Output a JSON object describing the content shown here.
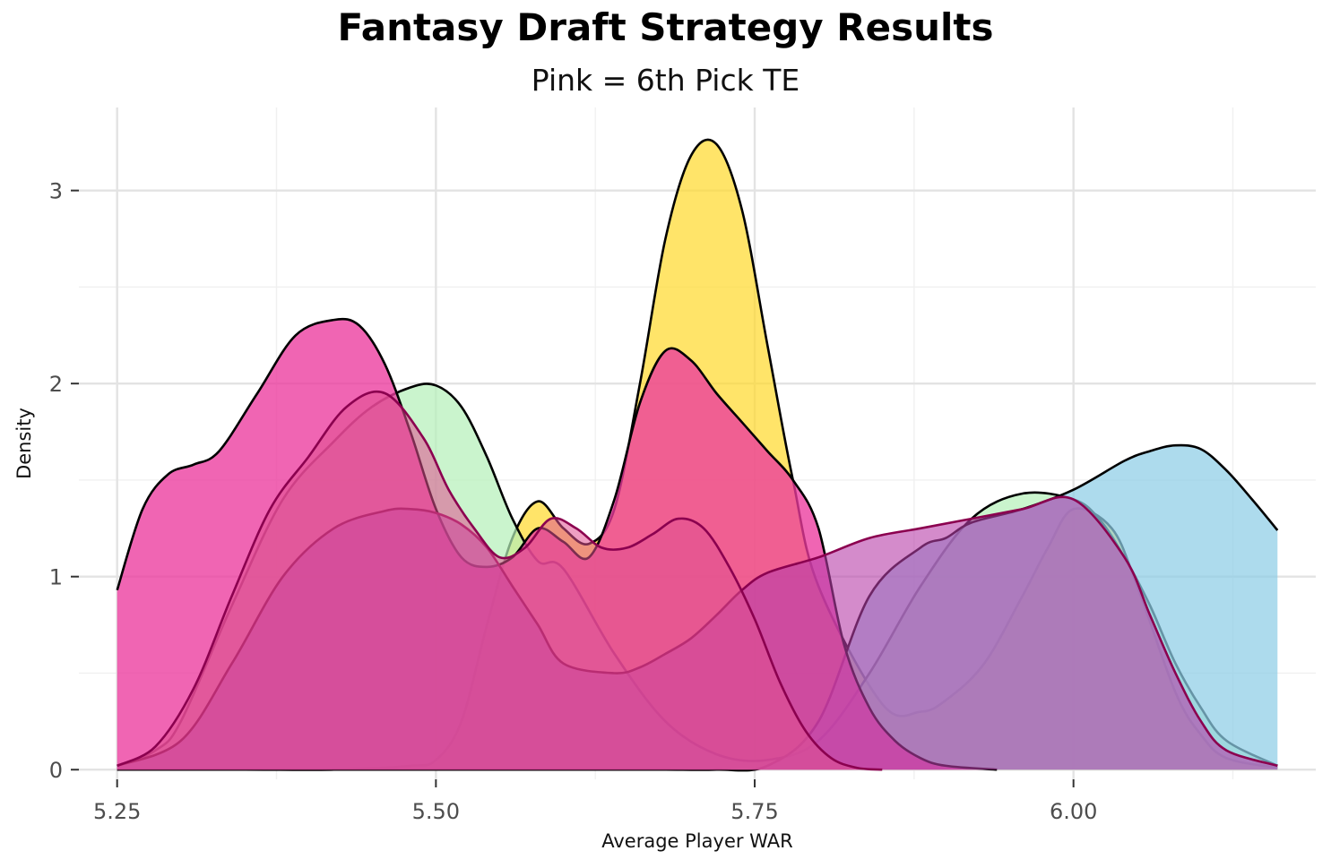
{
  "chart_data": {
    "type": "area",
    "title": "Fantasy Draft Strategy Results",
    "subtitle": "Pink = 6th Pick TE",
    "xlabel": "Average Player WAR",
    "ylabel": "Density",
    "xlim": [
      5.22,
      6.19
    ],
    "ylim": [
      -0.05,
      3.43
    ],
    "xticks": [
      "5.25",
      "5.50",
      "5.75",
      "6.00"
    ],
    "xtick_values": [
      5.25,
      5.5,
      5.75,
      6.0
    ],
    "yticks": [
      "0",
      "1",
      "2",
      "3"
    ],
    "ytick_values": [
      0,
      1,
      2,
      3
    ],
    "grid": true,
    "series": [
      {
        "color": "#ffd92f",
        "opacity": 0.72,
        "outline": "#000000",
        "x": [
          5.25,
          5.35,
          5.42,
          5.48,
          5.5,
          5.52,
          5.54,
          5.56,
          5.58,
          5.6,
          5.62,
          5.64,
          5.66,
          5.68,
          5.7,
          5.72,
          5.74,
          5.76,
          5.78,
          5.8,
          5.85,
          5.88,
          5.9,
          5.93,
          5.96,
          5.98,
          6.0,
          6.03,
          6.05,
          6.08,
          6.1,
          6.12,
          6.16
        ],
        "y": [
          0,
          0,
          0,
          0.02,
          0.05,
          0.25,
          0.75,
          1.2,
          1.39,
          1.25,
          1.17,
          1.35,
          2.0,
          2.75,
          3.18,
          3.24,
          2.9,
          2.2,
          1.5,
          0.95,
          0.34,
          0.3,
          0.36,
          0.55,
          0.9,
          1.15,
          1.35,
          1.25,
          0.95,
          0.4,
          0.18,
          0.06,
          0.01
        ]
      },
      {
        "color": "#b3f0b8",
        "opacity": 0.7,
        "outline": "#000000",
        "x": [
          5.25,
          5.28,
          5.3,
          5.34,
          5.38,
          5.42,
          5.45,
          5.48,
          5.5,
          5.52,
          5.54,
          5.56,
          5.58,
          5.6,
          5.64,
          5.68,
          5.72,
          5.76,
          5.8,
          5.84,
          5.88,
          5.92,
          5.96,
          6.0,
          6.02,
          6.04,
          6.06,
          6.08,
          6.1,
          6.12,
          6.16
        ],
        "y": [
          0.02,
          0.1,
          0.25,
          0.85,
          1.4,
          1.7,
          1.88,
          1.98,
          1.99,
          1.88,
          1.62,
          1.3,
          1.08,
          1.04,
          0.6,
          0.25,
          0.08,
          0.05,
          0.15,
          0.5,
          0.95,
          1.3,
          1.43,
          1.4,
          1.3,
          1.1,
          0.85,
          0.55,
          0.32,
          0.15,
          0.02
        ]
      },
      {
        "color": "#8ecde6",
        "opacity": 0.72,
        "outline": "#000000",
        "x": [
          5.25,
          5.55,
          5.6,
          5.64,
          5.68,
          5.72,
          5.76,
          5.8,
          5.84,
          5.88,
          5.9,
          5.92,
          5.96,
          6.0,
          6.04,
          6.06,
          6.08,
          6.1,
          6.12,
          6.14,
          6.16
        ],
        "y": [
          0,
          0,
          0,
          0,
          0,
          0,
          0.02,
          0.25,
          0.9,
          1.15,
          1.2,
          1.28,
          1.35,
          1.45,
          1.6,
          1.65,
          1.68,
          1.66,
          1.55,
          1.4,
          1.24
        ]
      },
      {
        "color": "#ec3a9e",
        "opacity": 0.78,
        "outline": "#000000",
        "x": [
          5.25,
          5.27,
          5.29,
          5.31,
          5.33,
          5.36,
          5.39,
          5.42,
          5.44,
          5.46,
          5.48,
          5.5,
          5.52,
          5.54,
          5.56,
          5.58,
          5.6,
          5.62,
          5.64,
          5.66,
          5.68,
          5.7,
          5.72,
          5.74,
          5.76,
          5.78,
          5.8,
          5.82,
          5.84,
          5.86,
          5.88,
          5.9,
          5.94
        ],
        "y": [
          0.93,
          1.35,
          1.53,
          1.58,
          1.65,
          1.95,
          2.25,
          2.33,
          2.3,
          2.1,
          1.75,
          1.35,
          1.1,
          1.05,
          1.1,
          1.25,
          1.18,
          1.1,
          1.4,
          1.9,
          2.17,
          2.12,
          1.95,
          1.8,
          1.65,
          1.5,
          1.25,
          0.65,
          0.32,
          0.15,
          0.06,
          0.02,
          0
        ]
      },
      {
        "color": "#b83da8",
        "opacity": 0.6,
        "outline": "#8b004f",
        "x": [
          5.25,
          5.3,
          5.34,
          5.38,
          5.42,
          5.46,
          5.48,
          5.5,
          5.52,
          5.54,
          5.56,
          5.58,
          5.6,
          5.64,
          5.66,
          5.68,
          5.7,
          5.72,
          5.74,
          5.76,
          5.8,
          5.84,
          5.88,
          5.92,
          5.96,
          6.0,
          6.04,
          6.06,
          6.08,
          6.1,
          6.12,
          6.16
        ],
        "y": [
          0.02,
          0.15,
          0.55,
          1.0,
          1.25,
          1.34,
          1.35,
          1.33,
          1.27,
          1.15,
          0.95,
          0.75,
          0.55,
          0.5,
          0.53,
          0.6,
          0.68,
          0.8,
          0.93,
          1.02,
          1.1,
          1.2,
          1.25,
          1.3,
          1.35,
          1.4,
          1.1,
          0.8,
          0.5,
          0.25,
          0.1,
          0.02
        ]
      },
      {
        "color": "#e0518f",
        "opacity": 0.55,
        "outline": "#8b004f",
        "x": [
          5.25,
          5.28,
          5.31,
          5.34,
          5.37,
          5.4,
          5.43,
          5.46,
          5.49,
          5.51,
          5.53,
          5.55,
          5.57,
          5.59,
          5.61,
          5.63,
          5.65,
          5.67,
          5.69,
          5.71,
          5.73,
          5.75,
          5.77,
          5.79,
          5.81,
          5.83,
          5.85
        ],
        "y": [
          0.02,
          0.12,
          0.42,
          0.9,
          1.35,
          1.62,
          1.88,
          1.95,
          1.72,
          1.45,
          1.25,
          1.1,
          1.15,
          1.3,
          1.25,
          1.15,
          1.15,
          1.22,
          1.3,
          1.25,
          1.05,
          0.78,
          0.45,
          0.2,
          0.06,
          0.01,
          0
        ]
      }
    ]
  }
}
